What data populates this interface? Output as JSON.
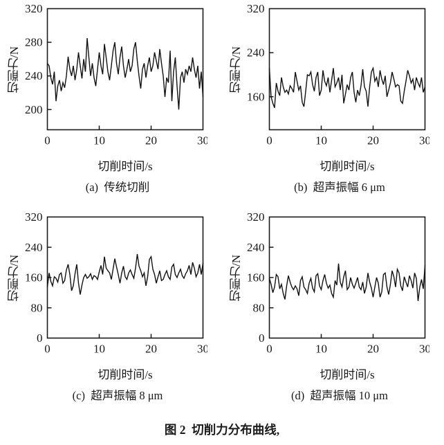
{
  "figure_title": "图 2  切削力分布曲线,",
  "styles": {
    "line_color": "#111111",
    "axis_color": "#1a1a1a",
    "background": "#ffffff"
  },
  "chart_data": [
    {
      "id": "a",
      "type": "line",
      "caption": "(a)  传统切削",
      "xlabel": "切削时间/s",
      "ylabel": "切削力/N",
      "x_range": [
        0,
        30
      ],
      "xticks": [
        0,
        10,
        20,
        30
      ],
      "ylim": [
        176,
        320
      ],
      "yticks": [
        200,
        240,
        280,
        320
      ],
      "values": [
        255,
        252,
        238,
        230,
        245,
        210,
        228,
        235,
        222,
        232,
        226,
        240,
        263,
        248,
        240,
        252,
        235,
        248,
        268,
        252,
        237,
        260,
        245,
        285,
        262,
        240,
        255,
        238,
        228,
        248,
        268,
        252,
        242,
        278,
        262,
        245,
        235,
        252,
        270,
        280,
        255,
        242,
        262,
        275,
        252,
        238,
        248,
        260,
        245,
        252,
        272,
        280,
        258,
        240,
        225,
        248,
        255,
        238,
        252,
        262,
        245,
        252,
        268,
        258,
        248,
        272,
        255,
        240,
        215,
        238,
        232,
        270,
        210,
        245,
        262,
        228,
        200,
        238,
        245,
        232,
        248,
        242,
        252,
        245,
        262,
        248,
        238,
        252,
        225,
        245,
        215
      ]
    },
    {
      "id": "b",
      "type": "line",
      "caption": "(b)  超声振幅 6 μm",
      "xlabel": "切削时间/s",
      "ylabel": "切削力/N",
      "x_range": [
        0,
        30
      ],
      "xticks": [
        0,
        10,
        20,
        30
      ],
      "ylim": [
        100,
        320
      ],
      "yticks": [
        160,
        240,
        320
      ],
      "values": [
        212,
        160,
        148,
        140,
        185,
        170,
        162,
        195,
        178,
        168,
        172,
        165,
        180,
        175,
        168,
        205,
        188,
        172,
        180,
        150,
        142,
        170,
        200,
        198,
        205,
        182,
        170,
        195,
        205,
        162,
        172,
        208,
        188,
        180,
        195,
        168,
        190,
        212,
        178,
        185,
        195,
        172,
        200,
        148,
        165,
        182,
        172,
        195,
        205,
        168,
        150,
        172,
        162,
        180,
        210,
        178,
        170,
        142,
        178,
        205,
        212,
        188,
        195,
        178,
        208,
        192,
        182,
        198,
        160,
        172,
        185,
        205,
        192,
        178,
        182,
        180,
        152,
        148,
        170,
        188,
        208,
        198,
        185,
        192,
        172,
        195,
        185,
        178,
        195,
        168,
        178
      ]
    },
    {
      "id": "c",
      "type": "line",
      "caption": "(c)  超声振幅 8 μm",
      "xlabel": "切削时间/s",
      "ylabel": "切削力/N",
      "x_range": [
        0,
        30
      ],
      "xticks": [
        0,
        10,
        20,
        30
      ],
      "ylim": [
        0,
        320
      ],
      "yticks": [
        0,
        80,
        160,
        240,
        320
      ],
      "values": [
        135,
        172,
        150,
        138,
        162,
        158,
        148,
        168,
        172,
        145,
        152,
        180,
        195,
        168,
        125,
        138,
        170,
        195,
        145,
        115,
        140,
        160,
        168,
        158,
        162,
        170,
        155,
        165,
        162,
        155,
        175,
        192,
        168,
        215,
        185,
        178,
        172,
        155,
        182,
        210,
        188,
        168,
        145,
        172,
        190,
        162,
        155,
        172,
        180,
        168,
        158,
        185,
        222,
        190,
        178,
        162,
        172,
        138,
        162,
        208,
        215,
        182,
        168,
        145,
        162,
        178,
        152,
        155,
        168,
        178,
        162,
        155,
        188,
        195,
        168,
        160,
        172,
        182,
        165,
        158,
        170,
        178,
        192,
        168,
        200,
        185,
        162,
        172,
        195,
        168,
        198
      ]
    },
    {
      "id": "d",
      "type": "line",
      "caption": "(d)  超声振幅 10 μm",
      "xlabel": "切削时间/s",
      "ylabel": "切削力/N",
      "x_range": [
        0,
        30
      ],
      "xticks": [
        0,
        10,
        20,
        30
      ],
      "ylim": [
        0,
        320
      ],
      "yticks": [
        0,
        80,
        160,
        240,
        320
      ],
      "values": [
        158,
        142,
        120,
        135,
        168,
        162,
        130,
        142,
        118,
        102,
        138,
        165,
        148,
        135,
        128,
        138,
        130,
        112,
        152,
        162,
        135,
        128,
        118,
        145,
        158,
        132,
        122,
        165,
        170,
        138,
        128,
        152,
        168,
        145,
        132,
        140,
        118,
        108,
        152,
        140,
        197,
        148,
        135,
        162,
        178,
        128,
        135,
        160,
        142,
        132,
        145,
        160,
        135,
        128,
        148,
        118,
        135,
        172,
        148,
        132,
        108,
        135,
        160,
        145,
        108,
        122,
        168,
        172,
        135,
        115,
        142,
        178,
        162,
        135,
        182,
        172,
        138,
        125,
        162,
        148,
        135,
        165,
        152,
        132,
        172,
        158,
        98,
        135,
        155,
        130,
        192
      ]
    }
  ]
}
